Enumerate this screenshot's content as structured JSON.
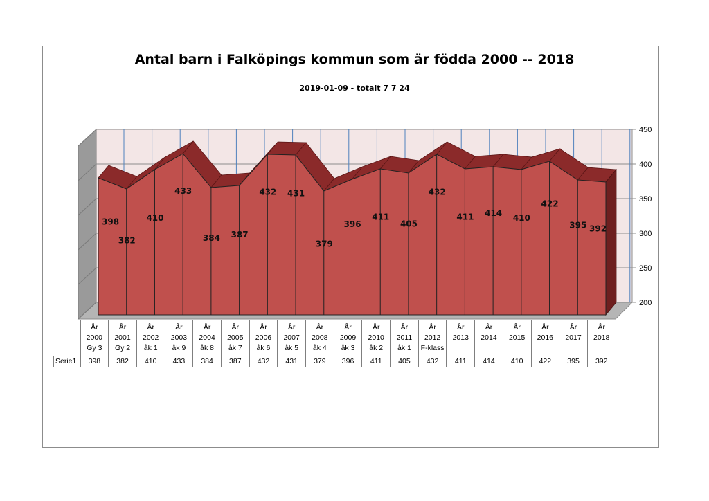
{
  "chart_data": {
    "type": "area",
    "title": "Antal barn i Falköpings kommun som är födda 2000 -- 2018",
    "subtitle": "2019-01-09 - totalt 7 7 24",
    "categories": [
      [
        "År",
        "2000",
        "Gy 3"
      ],
      [
        "År",
        "2001",
        "Gy 2"
      ],
      [
        "År",
        "2002",
        "åk 1"
      ],
      [
        "År",
        "2003",
        "åk 9"
      ],
      [
        "År",
        "2004",
        "åk 8"
      ],
      [
        "År",
        "2005",
        "åk 7"
      ],
      [
        "År",
        "2006",
        "åk 6"
      ],
      [
        "År",
        "2007",
        "åk 5"
      ],
      [
        "År",
        "2008",
        "åk 4"
      ],
      [
        "År",
        "2009",
        "åk 3"
      ],
      [
        "År",
        "2010",
        "åk 2"
      ],
      [
        "År",
        "2011",
        "åk 1"
      ],
      [
        "År",
        "2012",
        "F-klass"
      ],
      [
        "År",
        "2013"
      ],
      [
        "År",
        "2014"
      ],
      [
        "År",
        "2015"
      ],
      [
        "År",
        "2016"
      ],
      [
        "År",
        "2017"
      ],
      [
        "År",
        "2018"
      ]
    ],
    "series": [
      {
        "name": "Serie1",
        "values": [
          398,
          382,
          410,
          433,
          384,
          387,
          432,
          431,
          379,
          396,
          411,
          405,
          432,
          411,
          414,
          410,
          422,
          395,
          392
        ]
      }
    ],
    "ylim": [
      200,
      450
    ],
    "yticks": [
      200,
      250,
      300,
      350,
      400,
      450
    ],
    "grid": true,
    "data_labels": true,
    "data_table": true,
    "colors": {
      "front": "#c0504d",
      "top": "#8b2a2a",
      "side": "#6e1f1f",
      "wall": "#f3e6e6",
      "wall_side": "#9a9a9a",
      "floor": "#b5b5b5",
      "grid": "#4f81bd"
    }
  }
}
